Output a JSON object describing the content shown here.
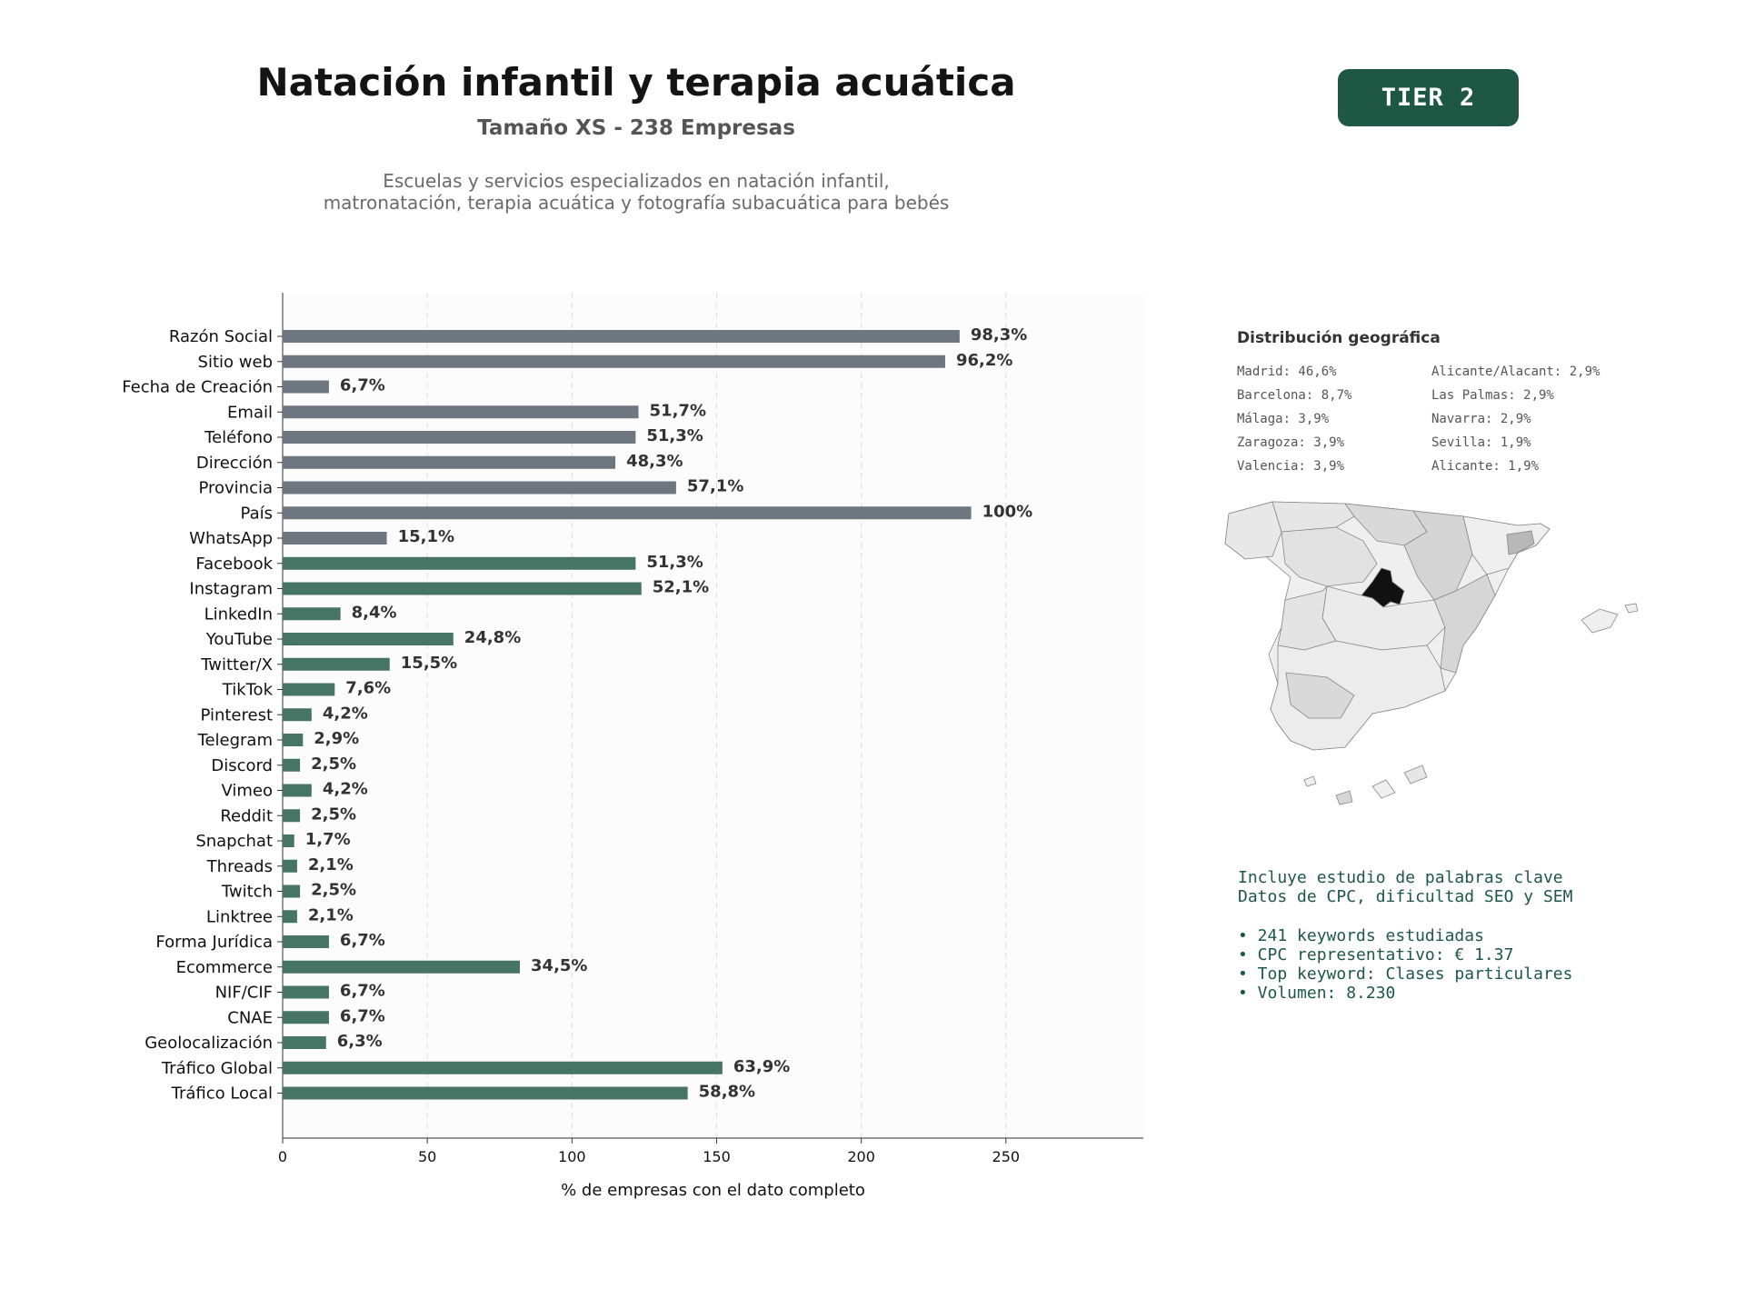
{
  "header": {
    "title": "Natación infantil y terapia acuática",
    "subtitle": "Tamaño XS - 238 Empresas",
    "description_line1": "Escuelas y servicios especializados en natación infantil,",
    "description_line2": "matronatación, terapia acuática y fotografía subacuática para bebés",
    "tier_label": "TIER 2"
  },
  "chart_data": {
    "type": "bar",
    "orientation": "horizontal",
    "categories": [
      "Razón Social",
      "Sitio web",
      "Fecha de Creación",
      "Email",
      "Teléfono",
      "Dirección",
      "Provincia",
      "País",
      "WhatsApp",
      "Facebook",
      "Instagram",
      "LinkedIn",
      "YouTube",
      "Twitter/X",
      "TikTok",
      "Pinterest",
      "Telegram",
      "Discord",
      "Vimeo",
      "Reddit",
      "Snapchat",
      "Threads",
      "Twitch",
      "Linktree",
      "Forma Jurídica",
      "Ecommerce",
      "NIF/CIF",
      "CNAE",
      "Geolocalización",
      "Tráfico Global",
      "Tráfico Local"
    ],
    "values": [
      234,
      229,
      16,
      123,
      122,
      115,
      136,
      238,
      36,
      122,
      124,
      20,
      59,
      37,
      18,
      10,
      7,
      6,
      10,
      6,
      4,
      5,
      6,
      5,
      16,
      82,
      16,
      16,
      15,
      152,
      140
    ],
    "value_labels": [
      "98,3%",
      "96,2%",
      "6,7%",
      "51,7%",
      "51,3%",
      "48,3%",
      "57,1%",
      "100%",
      "15,1%",
      "51,3%",
      "52,1%",
      "8,4%",
      "24,8%",
      "15,5%",
      "7,6%",
      "4,2%",
      "2,9%",
      "2,5%",
      "4,2%",
      "2,5%",
      "1,7%",
      "2,1%",
      "2,5%",
      "2,1%",
      "6,7%",
      "34,5%",
      "6,7%",
      "6,7%",
      "6,3%",
      "63,9%",
      "58,8%"
    ],
    "bar_colors": [
      "#6e7780",
      "#6e7780",
      "#6e7780",
      "#6e7780",
      "#6e7780",
      "#6e7780",
      "#6e7780",
      "#6e7780",
      "#6e7780",
      "#477565",
      "#477565",
      "#477565",
      "#477565",
      "#477565",
      "#477565",
      "#477565",
      "#477565",
      "#477565",
      "#477565",
      "#477565",
      "#477565",
      "#477565",
      "#477565",
      "#477565",
      "#477565",
      "#477565",
      "#477565",
      "#477565",
      "#477565",
      "#477565",
      "#477565"
    ],
    "xlabel": "% de empresas con el dato completo",
    "xlim": [
      0,
      297.5
    ],
    "xticks": [
      0,
      50,
      100,
      150,
      200,
      250
    ],
    "grid": "vertical dashed"
  },
  "geo": {
    "title": "Distribución geográfica",
    "items": [
      "Madrid: 46,6%",
      "Alicante/Alacant: 2,9%",
      "Barcelona: 8,7%",
      "Las Palmas: 2,9%",
      "Málaga: 3,9%",
      "Navarra: 2,9%",
      "Zaragoza: 3,9%",
      "Sevilla: 1,9%",
      "Valencia: 3,9%",
      "Alicante: 1,9%"
    ]
  },
  "keywords": {
    "line1": "Incluye estudio de palabras clave",
    "line2": "Datos de CPC, dificultad SEO y SEM",
    "bullets": [
      "• 241 keywords estudiadas",
      "• CPC representativo: € 1.37",
      "• Top keyword: Clases particulares",
      "• Volumen: 8.230"
    ]
  },
  "colors": {
    "accent": "#1e5845",
    "bar_contact": "#6e7780",
    "bar_digital": "#477565",
    "madrid": "#111111"
  }
}
